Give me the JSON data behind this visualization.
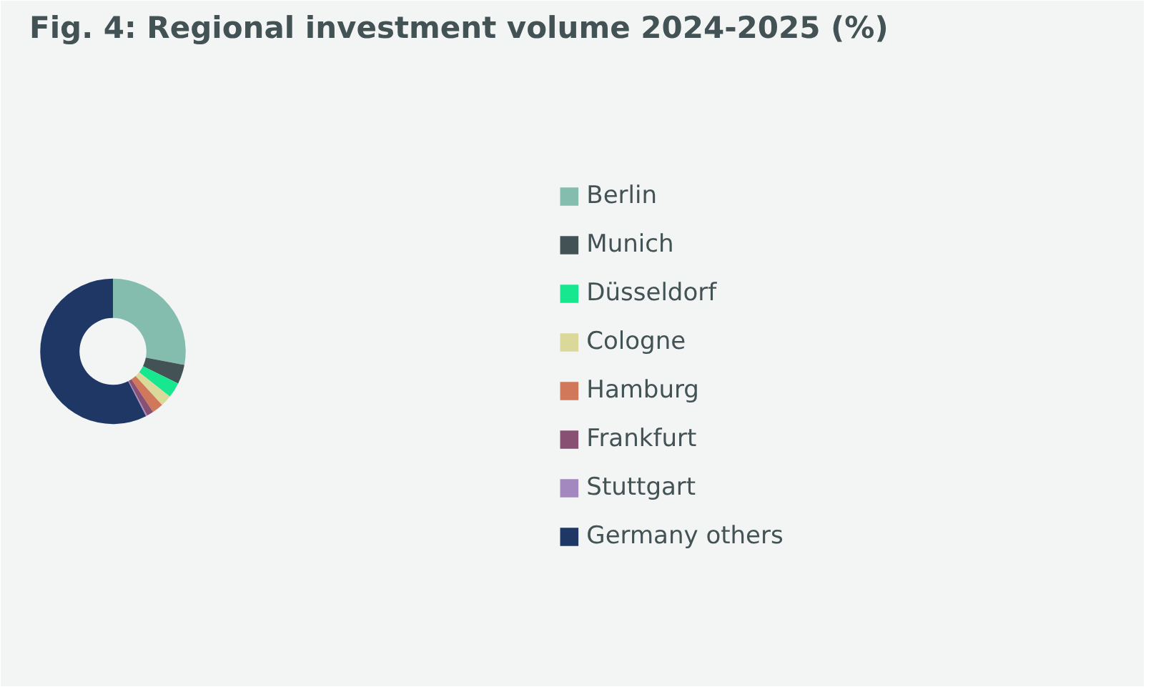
{
  "chart_data": {
    "type": "donut",
    "title": "Fig. 4: Regional investment volume 2024-2025 (%)",
    "categories": [
      "Berlin",
      "Munich",
      "Düsseldorf",
      "Cologne",
      "Hamburg",
      "Frankfurt",
      "Stuttgart",
      "Germany others"
    ],
    "values": [
      28,
      4.3,
      3.4,
      2.5,
      2.5,
      1.5,
      0.3,
      57.5
    ],
    "colors": [
      "#84bcad",
      "#435254",
      "#17e88f",
      "#dbd99a",
      "#d2785a",
      "#885073",
      "#a388bf",
      "#1f3765"
    ],
    "legend": "right"
  }
}
